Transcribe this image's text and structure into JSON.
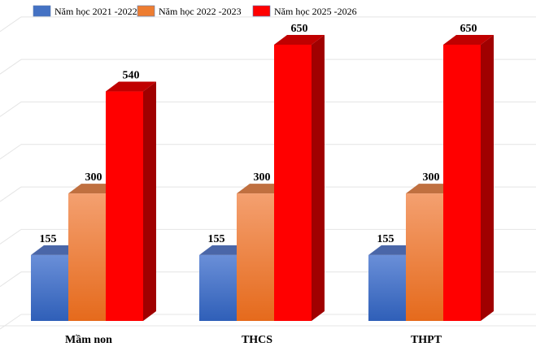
{
  "chart_data": {
    "type": "bar",
    "style": "3d-clustered-column",
    "categories": [
      "Mầm non",
      "THCS",
      "THPT"
    ],
    "series": [
      {
        "name": "Năm học 2021 -2022",
        "values": [
          155,
          155,
          155
        ],
        "color": "#4472C4"
      },
      {
        "name": "Năm học 2022 -2023",
        "values": [
          300,
          300,
          300
        ],
        "color": "#ED7D31"
      },
      {
        "name": "Năm học 2025 -2026",
        "values": [
          540,
          650,
          650
        ],
        "color": "#FF0000"
      }
    ],
    "ylim": [
      0,
      700
    ],
    "grid": true,
    "legend_position": "top",
    "data_labels": true
  }
}
